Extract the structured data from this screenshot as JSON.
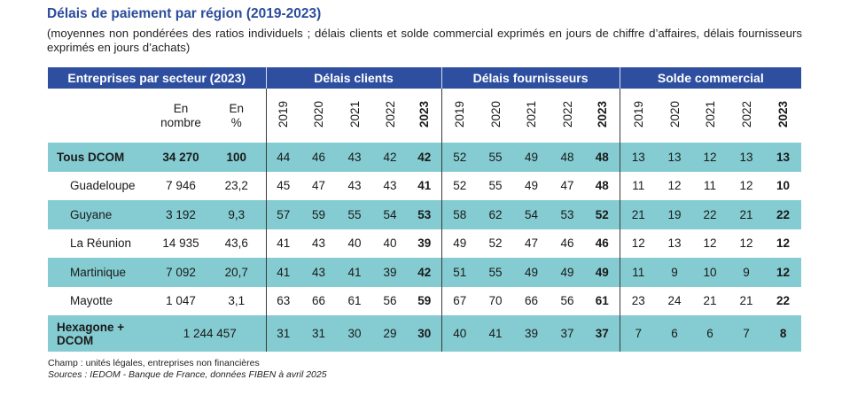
{
  "title": "Délais de paiement par région (2019-2023)",
  "subtitle": "(moyennes non pondérées des ratios individuels ; délais clients et solde commercial exprimés en jours de chiffre d’affaires, délais fournisseurs exprimés en jours d’achats)",
  "header": {
    "col_group_1": "Entreprises par secteur (2023)",
    "col_group_2": "Délais clients",
    "col_group_3": "Délais fournisseurs",
    "col_group_4": "Solde commercial",
    "unit_nombre_1": "En",
    "unit_nombre_2": "nombre",
    "unit_pct_1": "En",
    "unit_pct_2": "%",
    "years": [
      "2019",
      "2020",
      "2021",
      "2022",
      "2023"
    ]
  },
  "rows": [
    {
      "name": "Tous DCOM",
      "nombre": "34 270",
      "pct": "100",
      "clients": [
        "44",
        "46",
        "43",
        "42",
        "42"
      ],
      "fournisseurs": [
        "52",
        "55",
        "49",
        "48",
        "48"
      ],
      "solde": [
        "13",
        "13",
        "12",
        "13",
        "13"
      ]
    },
    {
      "name": "Guadeloupe",
      "nombre": "7 946",
      "pct": "23,2",
      "clients": [
        "45",
        "47",
        "43",
        "43",
        "41"
      ],
      "fournisseurs": [
        "52",
        "55",
        "49",
        "47",
        "48"
      ],
      "solde": [
        "11",
        "12",
        "11",
        "12",
        "10"
      ]
    },
    {
      "name": "Guyane",
      "nombre": "3 192",
      "pct": "9,3",
      "clients": [
        "57",
        "59",
        "55",
        "54",
        "53"
      ],
      "fournisseurs": [
        "58",
        "62",
        "54",
        "53",
        "52"
      ],
      "solde": [
        "21",
        "19",
        "22",
        "21",
        "22"
      ]
    },
    {
      "name": "La Réunion",
      "nombre": "14 935",
      "pct": "43,6",
      "clients": [
        "41",
        "43",
        "40",
        "40",
        "39"
      ],
      "fournisseurs": [
        "49",
        "52",
        "47",
        "46",
        "46"
      ],
      "solde": [
        "12",
        "13",
        "12",
        "12",
        "12"
      ]
    },
    {
      "name": "Martinique",
      "nombre": "7 092",
      "pct": "20,7",
      "clients": [
        "41",
        "43",
        "41",
        "39",
        "42"
      ],
      "fournisseurs": [
        "51",
        "55",
        "49",
        "49",
        "49"
      ],
      "solde": [
        "11",
        "9",
        "10",
        "9",
        "12"
      ]
    },
    {
      "name": "Mayotte",
      "nombre": "1 047",
      "pct": "3,1",
      "clients": [
        "63",
        "66",
        "61",
        "56",
        "59"
      ],
      "fournisseurs": [
        "67",
        "70",
        "66",
        "56",
        "61"
      ],
      "solde": [
        "23",
        "24",
        "21",
        "21",
        "22"
      ]
    }
  ],
  "total_row": {
    "name_line1": "Hexagone +",
    "name_line2": "DCOM",
    "nombre": "1 244 457",
    "clients": [
      "31",
      "31",
      "30",
      "29",
      "30"
    ],
    "fournisseurs": [
      "40",
      "41",
      "39",
      "37",
      "37"
    ],
    "solde": [
      "7",
      "6",
      "6",
      "7",
      "8"
    ]
  },
  "notes": {
    "champ": "Champ : unités légales, entreprises non financières",
    "sources": "Sources : IEDOM - Banque de France, données FIBEN à avril 2025"
  },
  "colors": {
    "header_bg": "#2e4fa0",
    "title_color": "#2b4c9b",
    "row_shade": "#84ccd1"
  }
}
